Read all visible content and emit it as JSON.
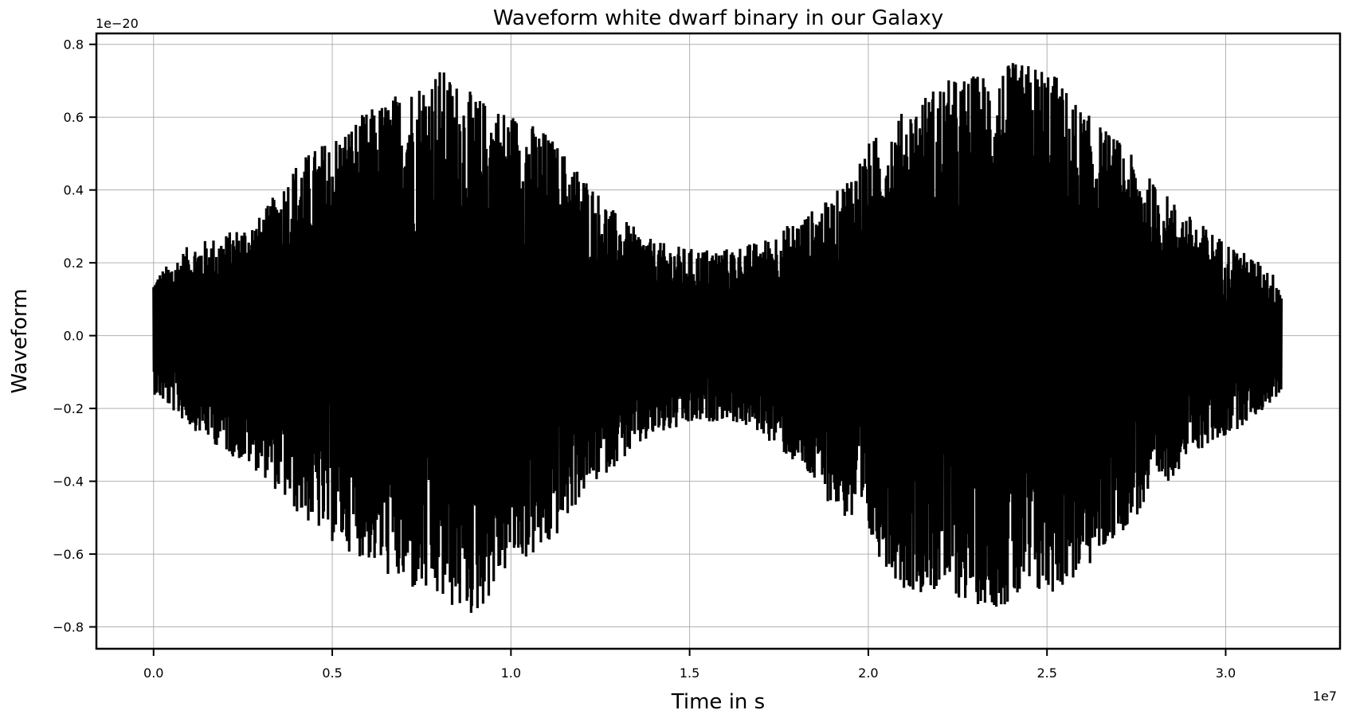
{
  "chart_data": {
    "type": "line",
    "title": "Waveform white dwarf binary in our Galaxy",
    "xlabel": "Time in s",
    "ylabel": "Waveform",
    "x_offset_label": "1e7",
    "y_offset_label": "1e−20",
    "xlim": [
      -0.16,
      3.32
    ],
    "ylim": [
      -0.86,
      0.83
    ],
    "x_ticks": [
      0.0,
      0.5,
      1.0,
      1.5,
      2.0,
      2.5,
      3.0
    ],
    "x_tick_labels": [
      "0.0",
      "0.5",
      "1.0",
      "1.5",
      "2.0",
      "2.5",
      "3.0"
    ],
    "y_ticks": [
      -0.8,
      -0.6,
      -0.4,
      -0.2,
      0.0,
      0.2,
      0.4,
      0.6,
      0.8
    ],
    "y_tick_labels": [
      "−0.8",
      "−0.6",
      "−0.4",
      "−0.2",
      "0.0",
      "0.2",
      "0.4",
      "0.6",
      "0.8"
    ],
    "grid": true,
    "legend": "none",
    "series": [
      {
        "color": "#000000",
        "x_range": [
          0.0,
          3.156
        ],
        "envelope": {
          "x": [
            0.0,
            0.1,
            0.2,
            0.3,
            0.4,
            0.5,
            0.6,
            0.7,
            0.8,
            0.9,
            1.0,
            1.1,
            1.2,
            1.3,
            1.4,
            1.5,
            1.6,
            1.7,
            1.8,
            1.9,
            2.0,
            2.1,
            2.2,
            2.3,
            2.4,
            2.5,
            2.6,
            2.7,
            2.8,
            2.9,
            3.0,
            3.1,
            3.156
          ],
          "upper": [
            0.16,
            0.25,
            0.28,
            0.33,
            0.48,
            0.55,
            0.62,
            0.68,
            0.74,
            0.66,
            0.62,
            0.56,
            0.45,
            0.33,
            0.26,
            0.24,
            0.24,
            0.26,
            0.32,
            0.38,
            0.53,
            0.62,
            0.7,
            0.72,
            0.75,
            0.75,
            0.62,
            0.54,
            0.42,
            0.33,
            0.26,
            0.2,
            0.15
          ],
          "lower": [
            -0.16,
            -0.25,
            -0.32,
            -0.38,
            -0.49,
            -0.57,
            -0.62,
            -0.7,
            -0.74,
            -0.78,
            -0.63,
            -0.6,
            -0.44,
            -0.35,
            -0.28,
            -0.25,
            -0.23,
            -0.27,
            -0.36,
            -0.47,
            -0.57,
            -0.7,
            -0.71,
            -0.74,
            -0.75,
            -0.72,
            -0.66,
            -0.55,
            -0.45,
            -0.33,
            -0.28,
            -0.21,
            -0.16
          ]
        }
      }
    ]
  }
}
